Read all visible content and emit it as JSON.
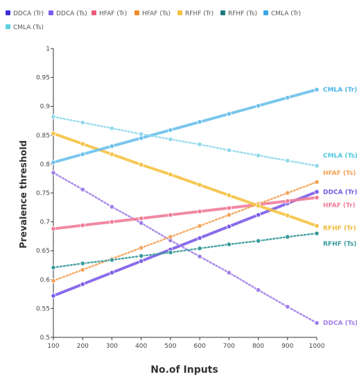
{
  "chart_data": {
    "type": "line",
    "title": "",
    "xlabel": "No.of Inputs",
    "ylabel": "Prevalence threshold",
    "x": [
      100,
      200,
      300,
      400,
      500,
      600,
      700,
      800,
      900,
      1000
    ],
    "x_tick_labels": [
      "100",
      "200",
      "300",
      "400",
      "500",
      "600",
      "700",
      "800",
      "900",
      "1000"
    ],
    "ylim": [
      0.5,
      1.0
    ],
    "y_ticks": [
      0.5,
      0.55,
      0.6,
      0.65,
      0.7,
      0.75,
      0.8,
      0.85,
      0.9,
      0.95,
      1.0
    ],
    "y_tick_labels": [
      "0.5",
      "0.55",
      "0.6",
      "0.65",
      "0.7",
      "0.75",
      "0.8",
      "0.85",
      "0.9",
      "0.95",
      "1"
    ],
    "grid": false,
    "legend_position": "top",
    "series": [
      {
        "name": "DDCA (Tr)",
        "end_label": "DDCA (Tr)",
        "color": "#7c5ce8",
        "style": "solid",
        "values": [
          0.572,
          0.592,
          0.612,
          0.632,
          0.652,
          0.672,
          0.692,
          0.712,
          0.732,
          0.752
        ]
      },
      {
        "name": "DDCA (Ts)",
        "end_label": "DDCA (Ts)",
        "color": "#a07de8",
        "style": "dotted",
        "values": [
          0.785,
          0.756,
          0.726,
          0.698,
          0.668,
          0.64,
          0.612,
          0.582,
          0.553,
          0.525
        ]
      },
      {
        "name": "HFAF (Tr)",
        "end_label": "HFAF (Tr)",
        "color": "#f07c98",
        "style": "solid",
        "values": [
          0.688,
          0.694,
          0.7,
          0.706,
          0.712,
          0.718,
          0.724,
          0.73,
          0.736,
          0.742
        ]
      },
      {
        "name": "HFAF (Ts)",
        "end_label": "HFAF (Ts)",
        "color": "#f4a256",
        "style": "dotted",
        "values": [
          0.598,
          0.617,
          0.636,
          0.655,
          0.674,
          0.693,
          0.712,
          0.731,
          0.75,
          0.769
        ]
      },
      {
        "name": "RFHF (Tr)",
        "end_label": "RFHF (Tr)",
        "color": "#f5c242",
        "style": "solid",
        "values": [
          0.853,
          0.835,
          0.817,
          0.799,
          0.782,
          0.764,
          0.746,
          0.728,
          0.711,
          0.693
        ]
      },
      {
        "name": "RFHF (Ts)",
        "end_label": "RFHF (Ts)",
        "color": "#3a9a9a",
        "style": "dotted",
        "values": [
          0.621,
          0.628,
          0.634,
          0.641,
          0.647,
          0.654,
          0.661,
          0.667,
          0.674,
          0.68
        ]
      },
      {
        "name": "CMLA (Tr)",
        "end_label": "CMLA (Tr)",
        "color": "#6cc0ea",
        "style": "solid",
        "values": [
          0.803,
          0.817,
          0.831,
          0.845,
          0.859,
          0.873,
          0.887,
          0.901,
          0.915,
          0.929
        ]
      },
      {
        "name": "CMLA (Ts)",
        "end_label": "CMLA (Ts)",
        "color": "#8fd8ec",
        "style": "dotted",
        "values": [
          0.882,
          0.872,
          0.862,
          0.852,
          0.843,
          0.834,
          0.824,
          0.815,
          0.806,
          0.797
        ]
      }
    ],
    "legend_swatch_colors": [
      "#3a2fd8",
      "#7c5ce8",
      "#ec5a7c",
      "#f08a2a",
      "#f5c242",
      "#1e7a80",
      "#3aa8e6",
      "#5fd0e0"
    ],
    "end_label_colors": [
      "#6f5de2",
      "#a07de8",
      "#f07c98",
      "#f4a256",
      "#f0bb3a",
      "#3a9a9a",
      "#4ab4e6",
      "#4cc8dc"
    ]
  }
}
